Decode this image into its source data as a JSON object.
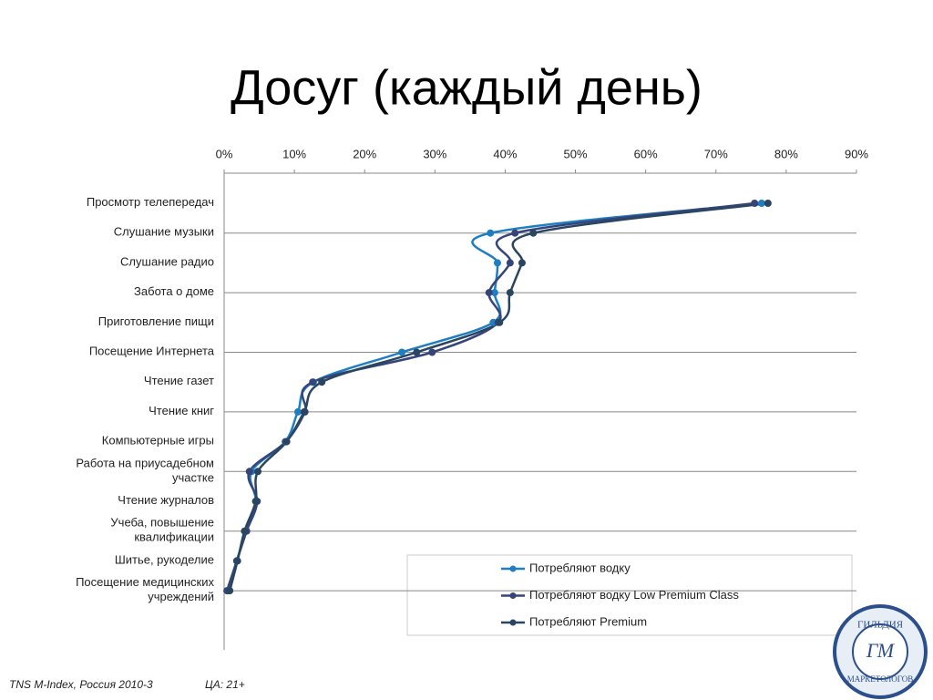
{
  "chart_data": {
    "type": "line",
    "orientation": "horizontal",
    "title": "Досуг (каждый день)",
    "categories": [
      "Просмотр телепередач",
      "Слушание музыки",
      "Слушание радио",
      "Забота о доме",
      "Приготовление пищи",
      "Посещение Интернета",
      "Чтение газет",
      "Чтение книг",
      "Компьютерные игры",
      "Работа на приусадебном\nучастке",
      "Чтение журналов",
      "Учеба, повышение\nквалификации",
      "Шитье, рукоделие",
      "Посещение медицинских\nучреждений"
    ],
    "series": [
      {
        "name": "Потребляют водку",
        "color": "#1f7ec2",
        "values": [
          76.5,
          37.9,
          38.9,
          38.5,
          38.3,
          25.3,
          12.7,
          10.5,
          8.7,
          3.9,
          4.5,
          3.1,
          1.8,
          0.5
        ]
      },
      {
        "name": "Потребляют водку Low Premium Class",
        "color": "#35457a",
        "values": [
          75.5,
          41.4,
          40.7,
          37.7,
          39.0,
          29.6,
          12.6,
          11.5,
          8.8,
          3.6,
          4.7,
          3.2,
          1.8,
          0.4
        ]
      },
      {
        "name": "Потребляют Premium",
        "color": "#2a4560",
        "values": [
          77.4,
          44.0,
          42.4,
          40.7,
          39.2,
          27.4,
          13.9,
          11.4,
          8.9,
          4.8,
          4.5,
          2.9,
          1.9,
          0.8
        ]
      }
    ],
    "xlim": [
      0,
      90
    ],
    "xticks": [
      {
        "value": 0,
        "label": "0%"
      },
      {
        "value": 10,
        "label": "10%"
      },
      {
        "value": 20,
        "label": "20%"
      },
      {
        "value": 30,
        "label": "30%"
      },
      {
        "value": 40,
        "label": "40%"
      },
      {
        "value": 50,
        "label": "50%"
      },
      {
        "value": 60,
        "label": "60%"
      },
      {
        "value": 70,
        "label": "70%"
      },
      {
        "value": 80,
        "label": "80%"
      },
      {
        "value": 90,
        "label": "90%"
      }
    ],
    "source": "TNS M-Index, Россия 2010-3",
    "audience": "ЦА: 21+",
    "logo": {
      "top": "ГИЛЬДИЯ",
      "bottom": "МАРКЕТОЛОГОВ",
      "mark": "ГМ"
    }
  }
}
